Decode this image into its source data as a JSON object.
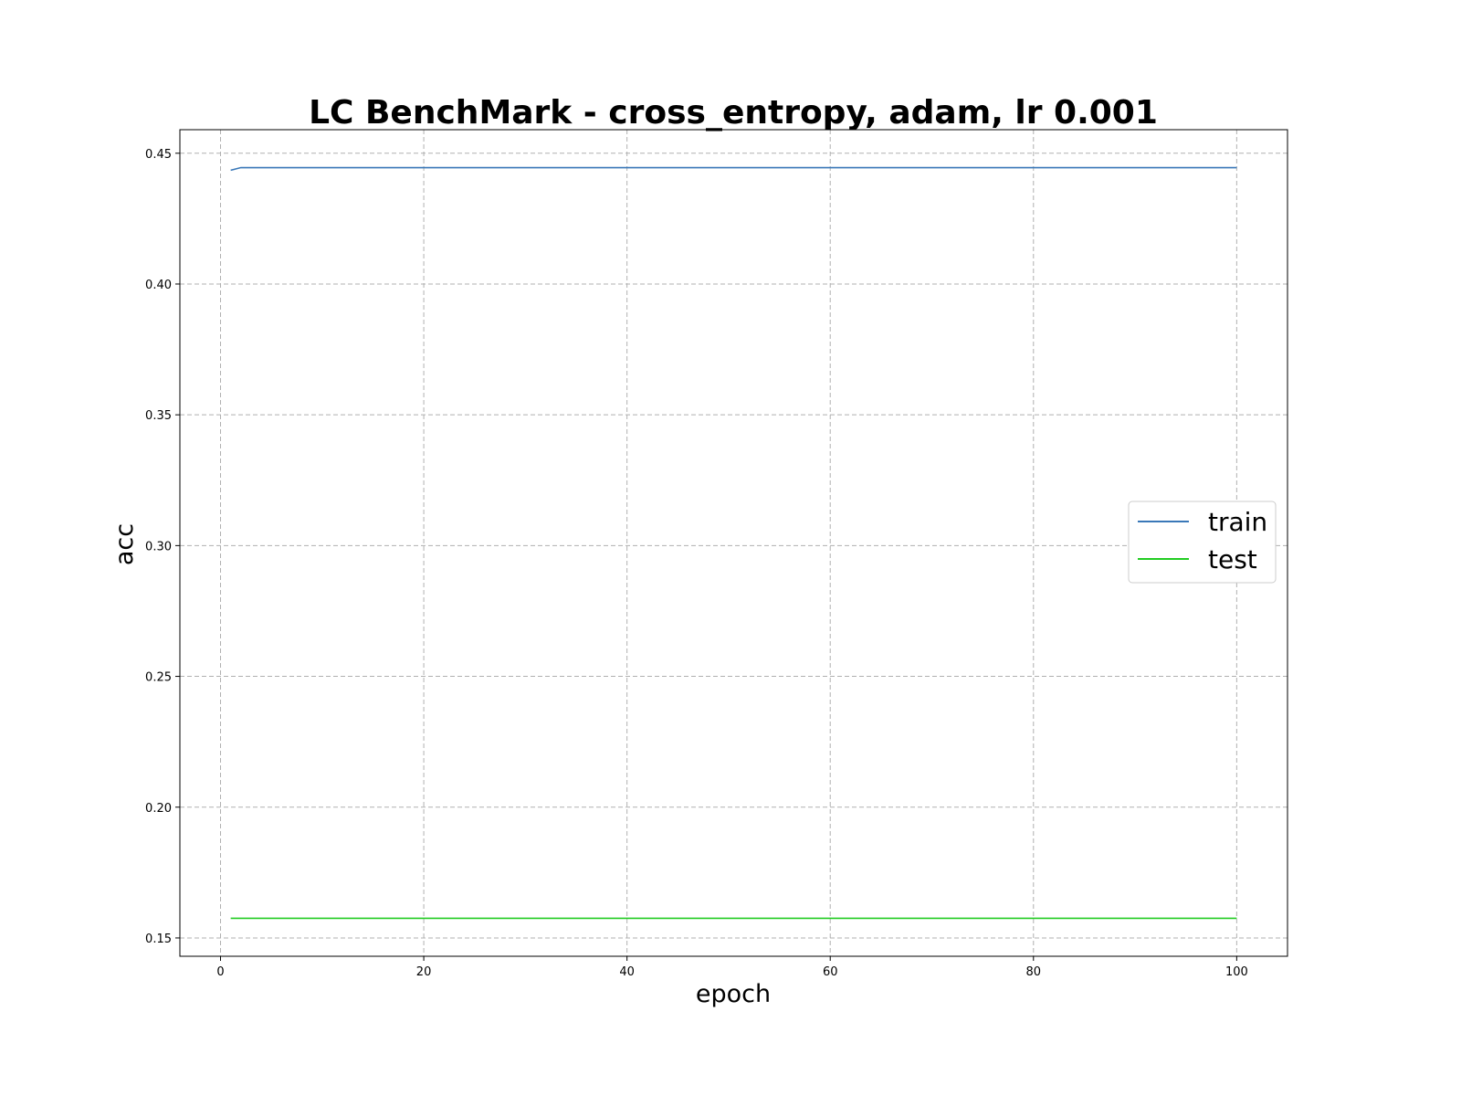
{
  "chart_data": {
    "type": "line",
    "title": "LC BenchMark - cross_entropy, adam, lr 0.001",
    "xlabel": "epoch",
    "ylabel": "acc",
    "xlim": [
      -4,
      105
    ],
    "ylim": [
      0.143,
      0.459
    ],
    "xticks": [
      0,
      20,
      40,
      60,
      80,
      100
    ],
    "xtick_labels": [
      "0",
      "20",
      "40",
      "60",
      "80",
      "100"
    ],
    "yticks": [
      0.15,
      0.2,
      0.25,
      0.3,
      0.35,
      0.4,
      0.45
    ],
    "ytick_labels": [
      "0.15",
      "0.20",
      "0.25",
      "0.30",
      "0.35",
      "0.40",
      "0.45"
    ],
    "grid": true,
    "legend_position": "center-right",
    "series": [
      {
        "name": "train",
        "color": "#3a78b8",
        "x": [
          1,
          2,
          100
        ],
        "y": [
          0.4435,
          0.4445,
          0.4445
        ]
      },
      {
        "name": "test",
        "color": "#22cc22",
        "x": [
          1,
          100
        ],
        "y": [
          0.1575,
          0.1575
        ]
      }
    ]
  }
}
